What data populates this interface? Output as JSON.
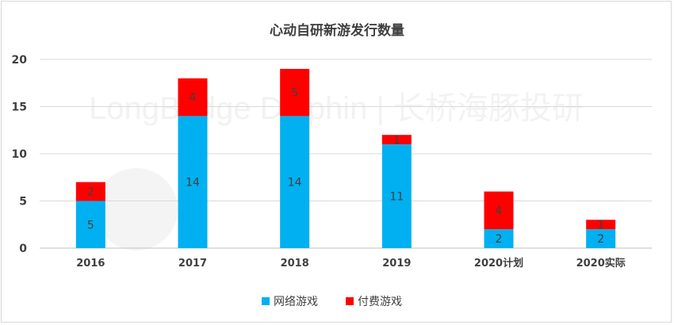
{
  "chart_data": {
    "type": "bar",
    "stacked": true,
    "title": "心动自研新游发行数量",
    "categories": [
      "2016",
      "2017",
      "2018",
      "2019",
      "2020计划",
      "2020实际"
    ],
    "series": [
      {
        "name": "网络游戏",
        "values": [
          5,
          14,
          14,
          11,
          2,
          2
        ],
        "color": "#00b0f0"
      },
      {
        "name": "付费游戏",
        "values": [
          2,
          4,
          5,
          1,
          4,
          1
        ],
        "color": "#ff0000"
      }
    ],
    "ylim": [
      0,
      20
    ],
    "yticks": [
      "0",
      "5",
      "10",
      "15",
      "20"
    ],
    "grid": true,
    "legend": "bottom",
    "watermark": "LongBridge Dolphin | 长桥海豚投研"
  }
}
